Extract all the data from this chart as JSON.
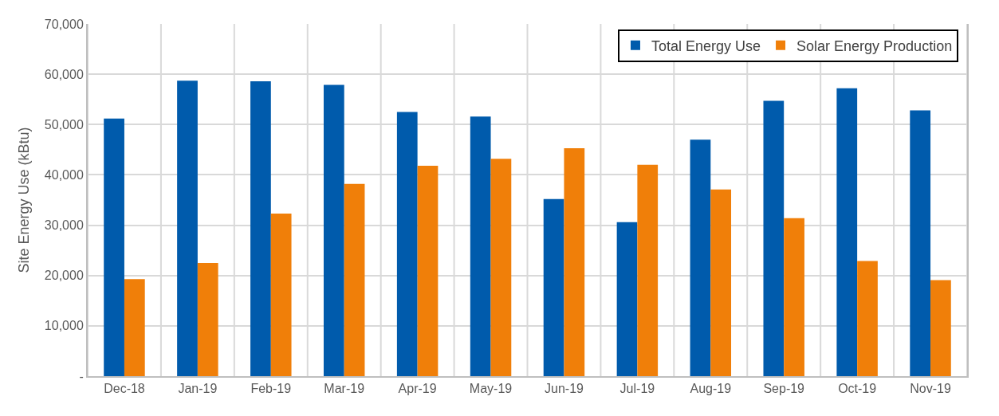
{
  "chart_data": {
    "type": "bar",
    "ylabel": "Site Energy Use (kBtu)",
    "categories": [
      "Dec-18",
      "Jan-19",
      "Feb-19",
      "Mar-19",
      "Apr-19",
      "May-19",
      "Jun-19",
      "Jul-19",
      "Aug-19",
      "Sep-19",
      "Oct-19",
      "Nov-19"
    ],
    "series": [
      {
        "name": "Total Energy Use",
        "color": "#005bac",
        "values": [
          51200,
          58700,
          58600,
          57900,
          52500,
          51600,
          35200,
          30600,
          47000,
          54700,
          57200,
          52800
        ]
      },
      {
        "name": "Solar Energy Production",
        "color": "#f07f09",
        "values": [
          19300,
          22500,
          32300,
          38200,
          41800,
          43200,
          45300,
          42000,
          37100,
          31400,
          22900,
          19100
        ]
      }
    ],
    "ylim": [
      0,
      70000
    ],
    "yticks": [
      {
        "value": 0,
        "label": "-"
      },
      {
        "value": 10000,
        "label": "10,000"
      },
      {
        "value": 20000,
        "label": "20,000"
      },
      {
        "value": 30000,
        "label": "30,000"
      },
      {
        "value": 40000,
        "label": "40,000"
      },
      {
        "value": 50000,
        "label": "50,000"
      },
      {
        "value": 60000,
        "label": "60,000"
      },
      {
        "value": 70000,
        "label": "70,000"
      }
    ],
    "grid": true,
    "legend": "top right"
  }
}
